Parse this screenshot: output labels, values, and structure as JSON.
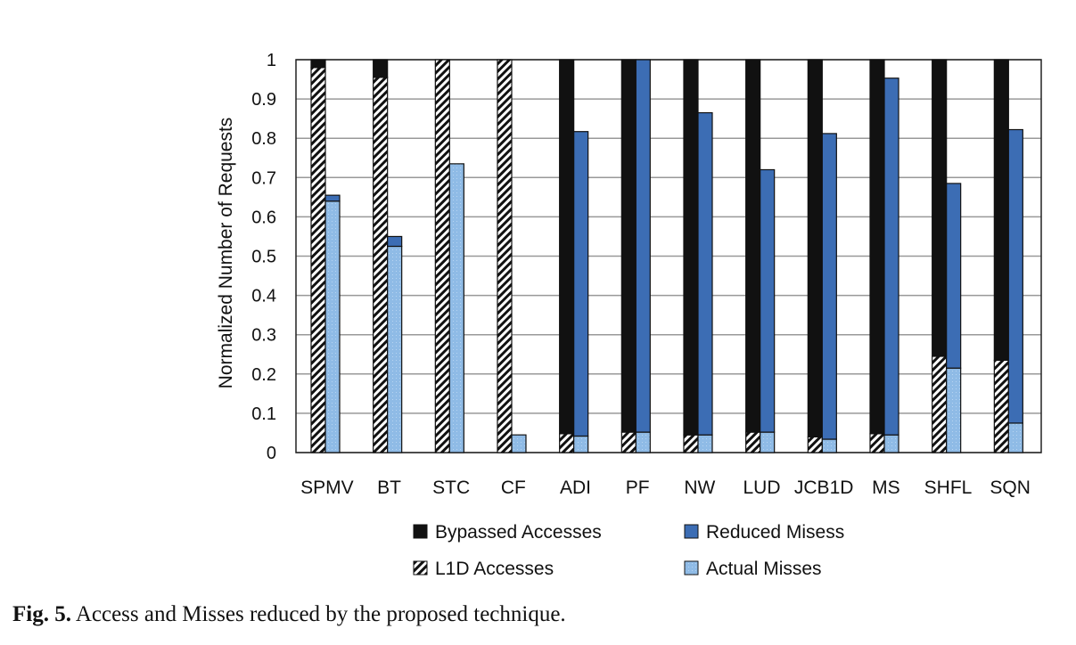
{
  "chart_data": {
    "type": "bar",
    "stacked_pairs": true,
    "ylabel": "Normalized Number of Requests",
    "xlabel": "",
    "ylim": [
      0,
      1
    ],
    "yticks": [
      "0",
      "0.1",
      "0.2",
      "0.3",
      "0.4",
      "0.5",
      "0.6",
      "0.7",
      "0.8",
      "0.9",
      "1"
    ],
    "grid": true,
    "legend_placement": "bottom",
    "categories": [
      "SPMV",
      "BT",
      "STC",
      "CF",
      "ADI",
      "PF",
      "NW",
      "LUD",
      "JCB1D",
      "MS",
      "SHFL",
      "SQN"
    ],
    "series": [
      {
        "name": "Bypassed Accesses",
        "stack": "accesses",
        "color": "#111111",
        "pattern": "solid",
        "values": [
          0.02,
          0.045,
          0.0,
          0.0,
          0.952,
          0.948,
          0.955,
          0.948,
          0.96,
          0.952,
          0.755,
          0.765
        ]
      },
      {
        "name": "L1D Accesses",
        "stack": "accesses",
        "color": "#ffffff",
        "pattern": "hatch",
        "values": [
          0.98,
          0.955,
          1.0,
          1.0,
          0.048,
          0.052,
          0.045,
          0.052,
          0.04,
          0.048,
          0.245,
          0.235
        ]
      },
      {
        "name": "Reduced Misess",
        "stack": "misses",
        "color": "#3c6db4",
        "pattern": "solid",
        "values": [
          0.015,
          0.025,
          0.0,
          0.0,
          0.775,
          0.948,
          0.82,
          0.668,
          0.778,
          0.908,
          0.47,
          0.747
        ]
      },
      {
        "name": "Actual Misses",
        "stack": "misses",
        "color": "#8fbbe6",
        "pattern": "dots",
        "values": [
          0.64,
          0.525,
          0.735,
          0.045,
          0.042,
          0.052,
          0.045,
          0.052,
          0.034,
          0.045,
          0.215,
          0.075
        ]
      }
    ]
  },
  "caption": {
    "label": "Fig. 5.",
    "text": " Access and Misses reduced by the proposed technique."
  }
}
